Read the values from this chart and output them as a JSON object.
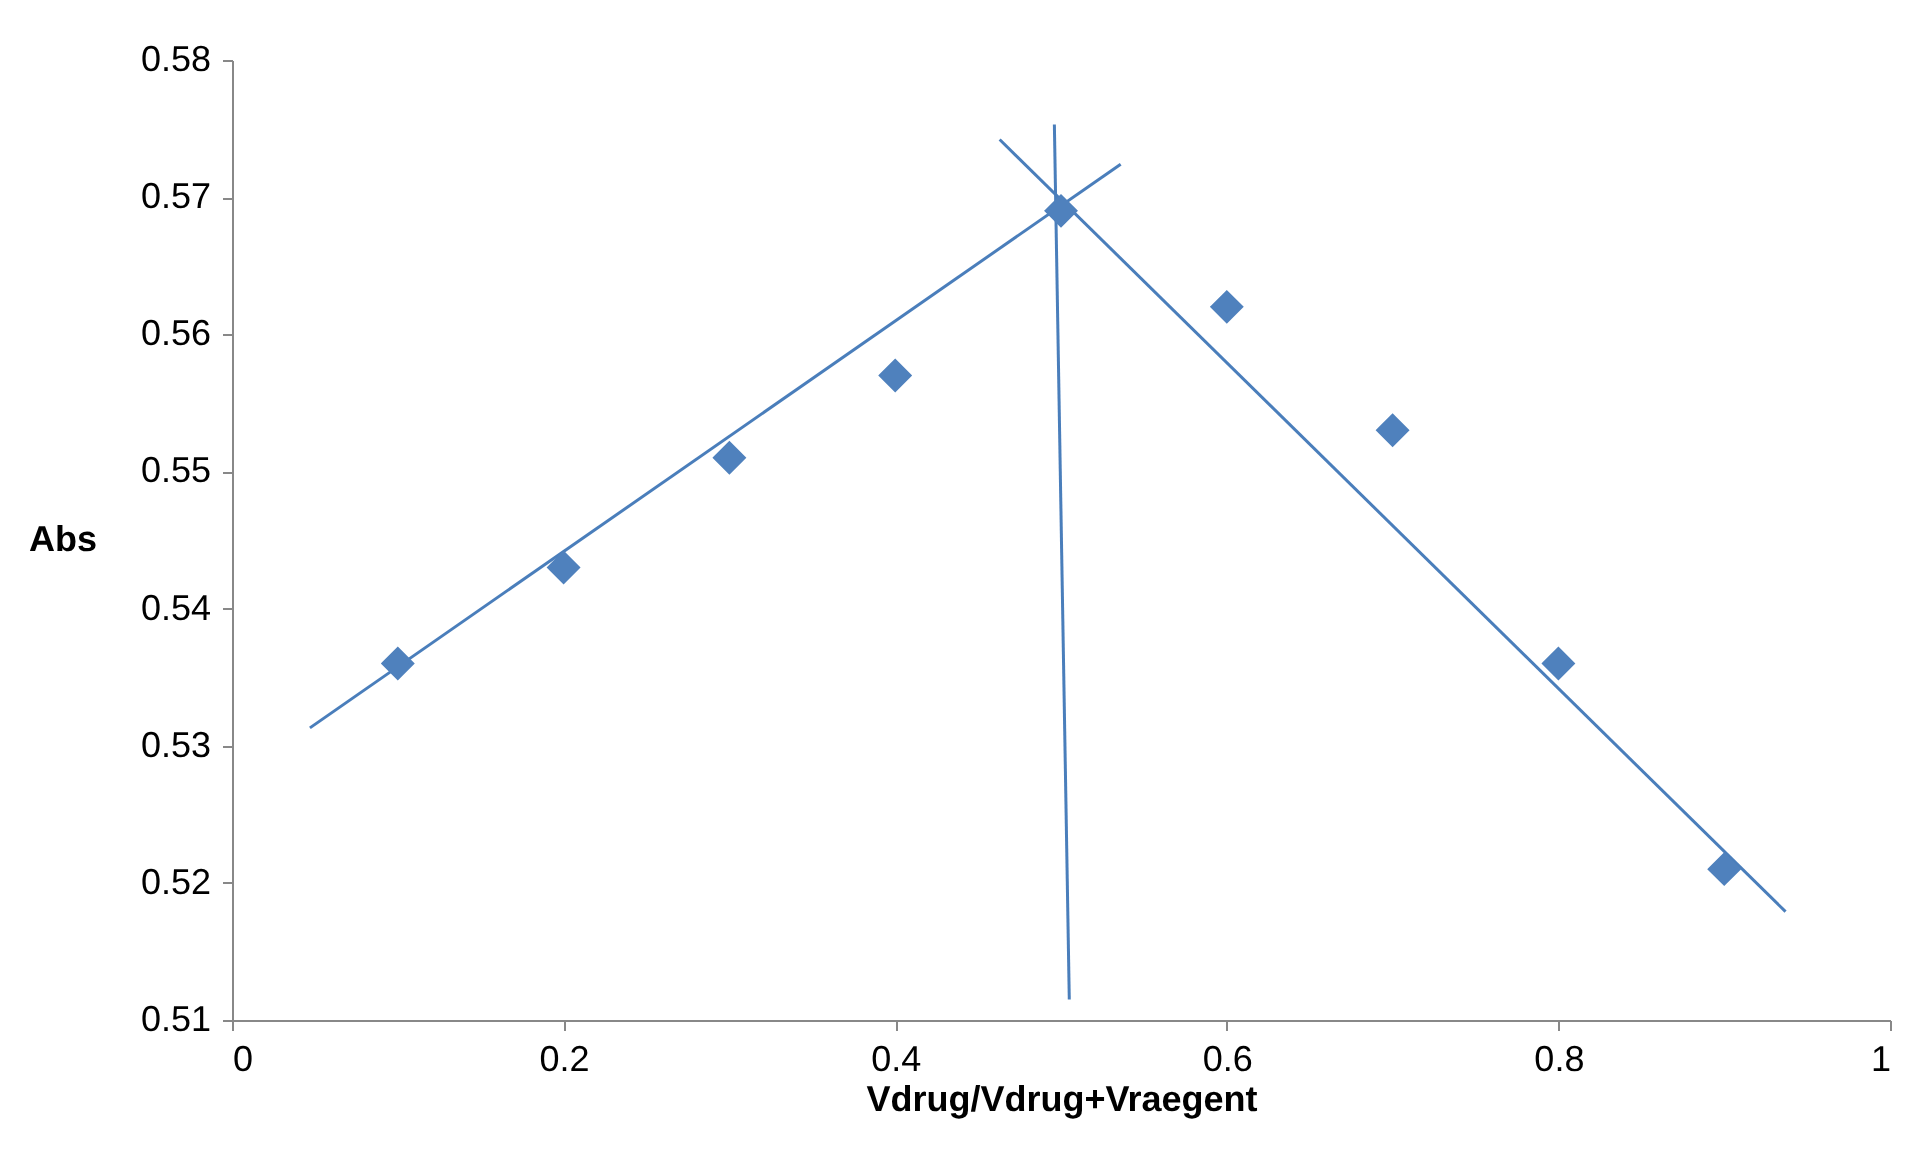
{
  "chart_data": {
    "type": "scatter",
    "xlabel": "Vdrug/Vdrug+Vraegent",
    "ylabel": "Abs",
    "x": [
      0.1,
      0.2,
      0.3,
      0.4,
      0.5,
      0.6,
      0.7,
      0.8,
      0.9
    ],
    "series": [
      {
        "marker": "diamond",
        "color": "#4f81bd",
        "values": [
          0.536,
          0.543,
          0.551,
          0.557,
          0.569,
          0.562,
          0.553,
          0.536,
          0.521
        ]
      },
      {
        "type": "line",
        "color": "#4a7ebb",
        "x": [
          0.047,
          0.536
        ],
        "values": [
          0.5313,
          0.5724
        ]
      },
      {
        "type": "line",
        "color": "#4a7ebb",
        "x": [
          0.463,
          0.937
        ],
        "values": [
          0.5742,
          0.5179
        ]
      },
      {
        "type": "line",
        "color": "#4a7ebb",
        "x": [
          0.496,
          0.505
        ],
        "values": [
          0.5753,
          0.5115
        ]
      }
    ],
    "xlim": [
      0,
      1
    ],
    "xticks": [
      0,
      0.2,
      0.4,
      0.6,
      0.8,
      1
    ],
    "ylim": [
      0.51,
      0.58
    ],
    "yticks": [
      0.51,
      0.52,
      0.53,
      0.54,
      0.55,
      0.56,
      0.57,
      0.58
    ],
    "grid": false
  }
}
